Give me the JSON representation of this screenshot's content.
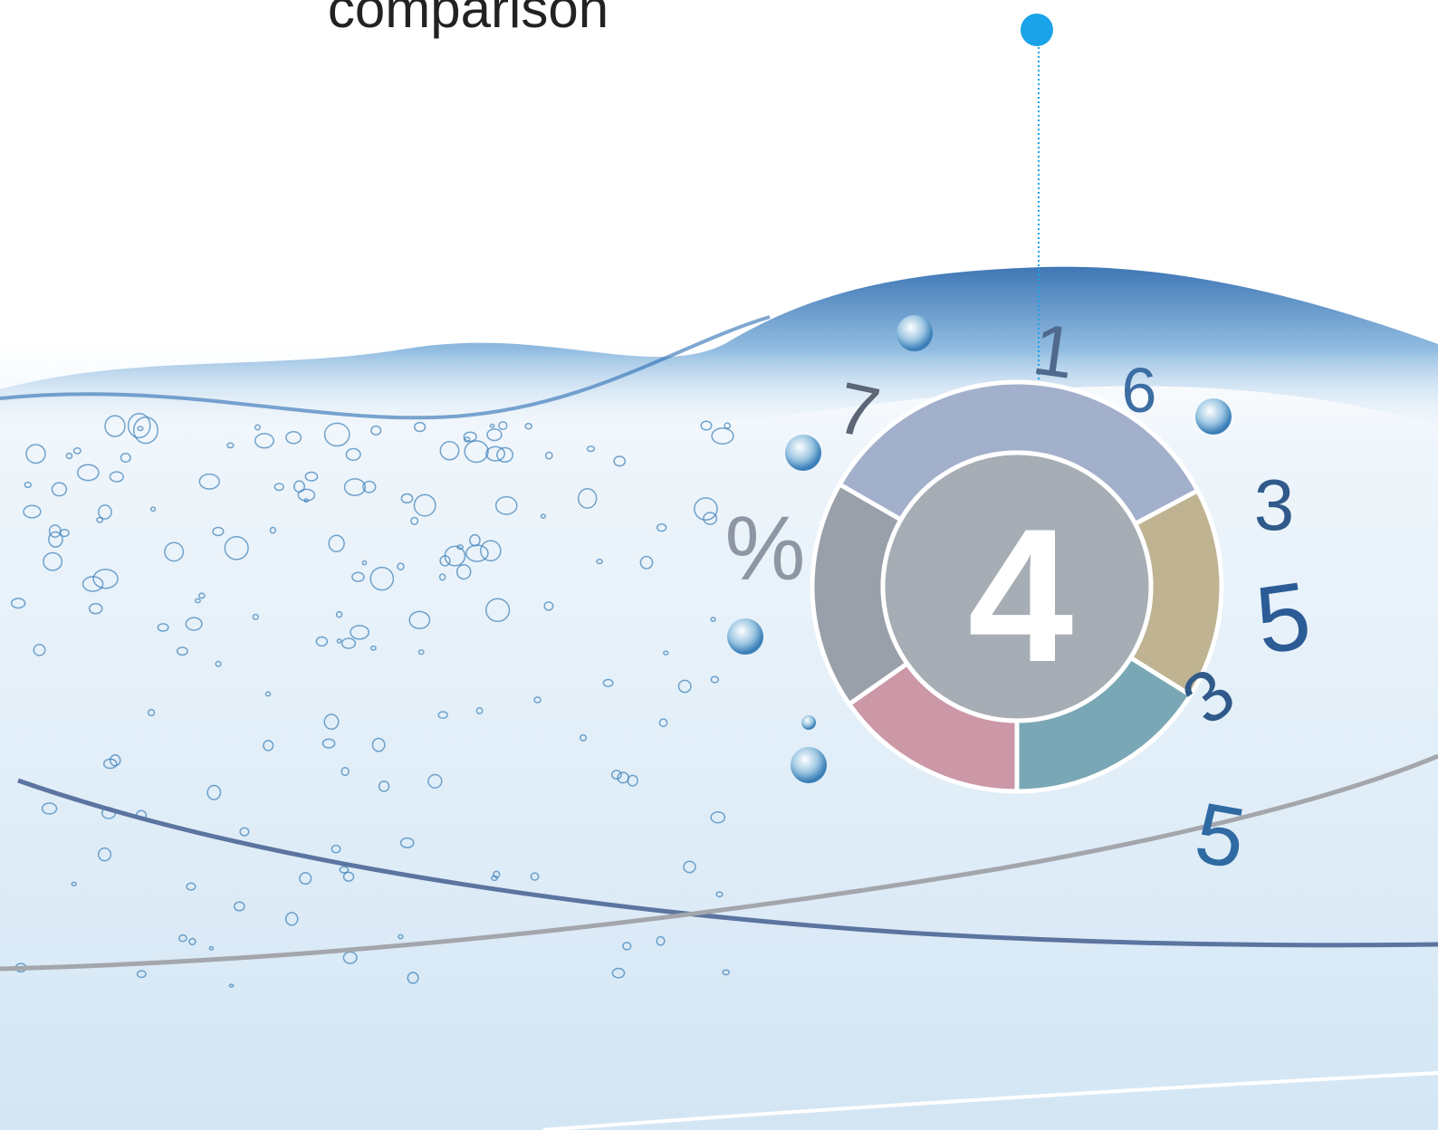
{
  "header": {
    "title": "comparison"
  },
  "donut": {
    "center_label": "4"
  },
  "floating_labels": [
    "1",
    "6",
    "7",
    "3",
    "5",
    "3",
    "5",
    "%"
  ]
}
